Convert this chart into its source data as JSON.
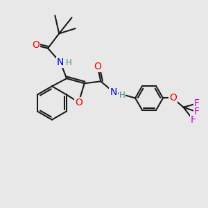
{
  "bg_color": "#e8e8e8",
  "bond_color": "#1a1a1a",
  "bond_width": 1.5,
  "atom_colors": {
    "O": "#ee0000",
    "N": "#0000cc",
    "H": "#2e9090",
    "F": "#cc00cc",
    "C": "#1a1a1a"
  },
  "font_size_atom": 10,
  "font_size_small": 8.5,
  "scale": 1.0
}
